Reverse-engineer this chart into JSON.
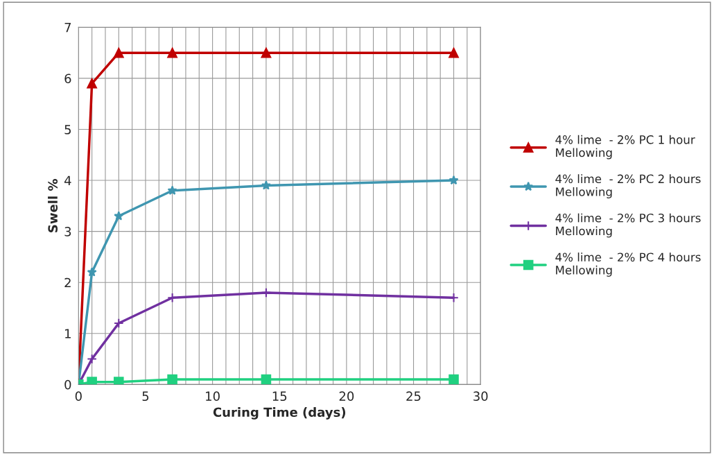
{
  "chart_data": {
    "type": "line",
    "xlabel": "Curing Time (days)",
    "ylabel": "Swell %",
    "x": [
      0,
      1,
      3,
      7,
      14,
      28
    ],
    "series": [
      {
        "name": "4% lime  - 2% PC 1 hour Mellowing",
        "color": "#c00000",
        "marker": "triangle",
        "values": [
          0,
          5.9,
          6.5,
          6.5,
          6.5,
          6.5
        ]
      },
      {
        "name": "4% lime  - 2% PC 2 hours Mellowing",
        "color": "#3f96b0",
        "marker": "star",
        "values": [
          0,
          2.2,
          3.3,
          3.8,
          3.9,
          4.0
        ]
      },
      {
        "name": "4% lime  - 2% PC 3 hours Mellowing",
        "color": "#7030a0",
        "marker": "cross",
        "values": [
          0,
          0.5,
          1.2,
          1.7,
          1.8,
          1.7
        ]
      },
      {
        "name": "4% lime  - 2% PC 4 hours Mellowing",
        "color": "#20d080",
        "marker": "square",
        "values": [
          0,
          0.05,
          0.05,
          0.1,
          0.1,
          0.1
        ]
      }
    ],
    "xlim": [
      0,
      30
    ],
    "xticks": [
      0,
      5,
      10,
      15,
      20,
      25,
      30
    ],
    "ylim": [
      0,
      7
    ],
    "yticks": [
      0,
      1,
      2,
      3,
      4,
      5,
      6,
      7
    ],
    "grid": true,
    "legend": "right",
    "line_style": "solid"
  }
}
